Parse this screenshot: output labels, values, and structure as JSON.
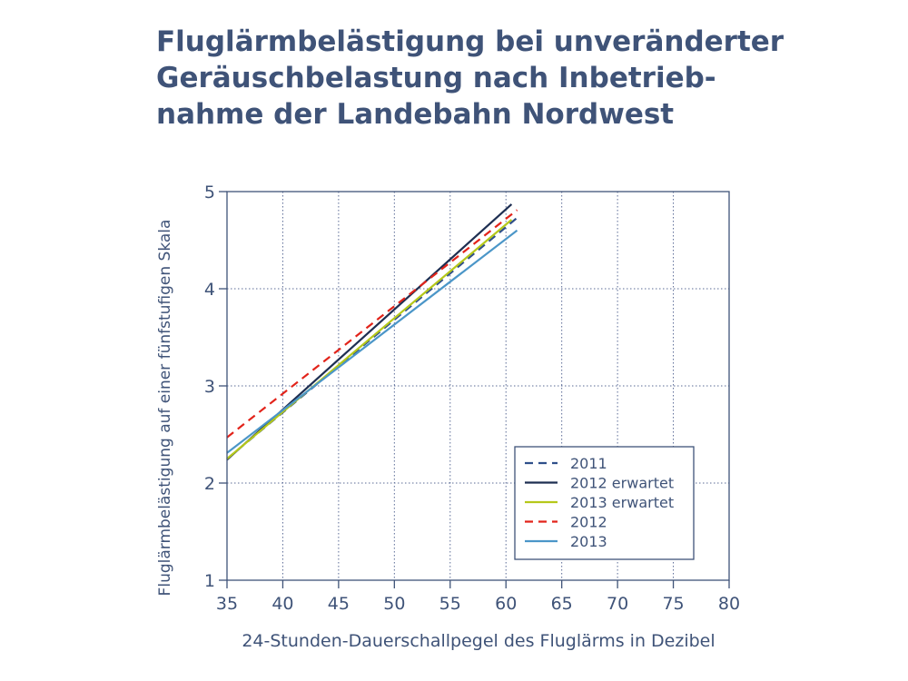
{
  "title_lines": [
    "Fluglärmbelästigung bei unveränderter",
    "Geräuschbelastung nach Inbetrieb-",
    "nahme der Landebahn Nordwest"
  ],
  "colors": {
    "title": "#3f5378",
    "axis": "#3f5378",
    "grid": "#5b6b96"
  },
  "chart_data": {
    "type": "line",
    "title": "Fluglärmbelästigung bei unveränderter Geräuschbelastung nach Inbetriebnahme der Landebahn Nordwest",
    "xlabel": "24-Stunden-Dauerschallpegel des Fluglärms in Dezibel",
    "ylabel": "Fluglärmbelästigung auf einer fünfstufigen Skala",
    "xlim": [
      35,
      80
    ],
    "ylim": [
      1,
      5
    ],
    "xticks": [
      "35",
      "40",
      "45",
      "50",
      "55",
      "60",
      "65",
      "70",
      "75",
      "80"
    ],
    "yticks": [
      "1",
      "2",
      "3",
      "4",
      "5"
    ],
    "grid": true,
    "legend_position": "bottom-right",
    "series": [
      {
        "name": "2011",
        "color": "#2f4f8a",
        "dash": "dashed",
        "x": [
          35,
          61
        ],
        "y": [
          2.25,
          4.73
        ]
      },
      {
        "name": "2012 erwartet",
        "color": "#1e2f52",
        "dash": "solid",
        "x": [
          35,
          60.5
        ],
        "y": [
          2.24,
          4.87
        ]
      },
      {
        "name": "2013 erwartet",
        "color": "#b5c81a",
        "dash": "solid",
        "x": [
          35,
          60.5
        ],
        "y": [
          2.25,
          4.71
        ]
      },
      {
        "name": "2012",
        "color": "#e2231a",
        "dash": "dashed",
        "x": [
          35,
          61
        ],
        "y": [
          2.47,
          4.81
        ]
      },
      {
        "name": "2013",
        "color": "#4b96c8",
        "dash": "solid",
        "x": [
          35,
          61
        ],
        "y": [
          2.31,
          4.6
        ]
      }
    ]
  }
}
